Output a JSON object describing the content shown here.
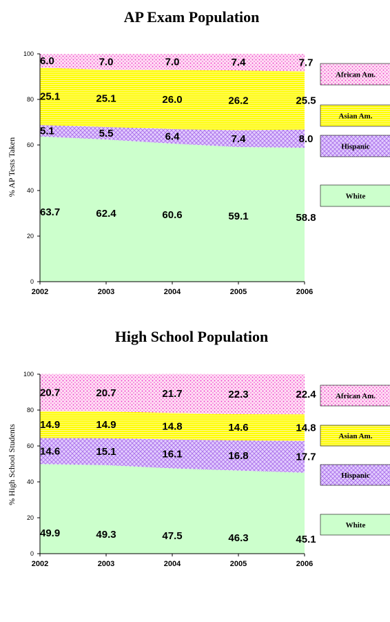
{
  "chart_data": [
    {
      "type": "area",
      "stacked": true,
      "title": "AP Exam Population",
      "ylabel": "% AP Tests Taken",
      "xlabel": "",
      "ylim": [
        0,
        100
      ],
      "yticks": [
        "0",
        "20",
        "40",
        "60",
        "80",
        "100"
      ],
      "categories": [
        "2002",
        "2003",
        "2004",
        "2005",
        "2006"
      ],
      "series": [
        {
          "name": "White",
          "values": [
            63.7,
            62.4,
            60.6,
            59.1,
            58.8
          ],
          "labels": [
            "63.7",
            "62.4",
            "60.6",
            "59.1",
            "58.8"
          ],
          "color": "#ccffcc",
          "pattern": "solid"
        },
        {
          "name": "Hispanic",
          "values": [
            5.1,
            5.5,
            6.4,
            7.4,
            8.0
          ],
          "labels": [
            "5.1",
            "5.5",
            "6.4",
            "7.4",
            "8.0"
          ],
          "color": "#cc99ff",
          "pattern": "crosshatch"
        },
        {
          "name": "Asian Am.",
          "values": [
            25.1,
            25.1,
            26.0,
            26.2,
            25.5
          ],
          "labels": [
            "25.1",
            "25.1",
            "26.0",
            "26.2",
            "25.5"
          ],
          "color": "#ffff00",
          "pattern": "hlines"
        },
        {
          "name": "African Am.",
          "values": [
            6.0,
            7.0,
            7.0,
            7.4,
            7.7
          ],
          "labels": [
            "6.0",
            "7.0",
            "7.0",
            "7.4",
            "7.7"
          ],
          "color": "#ff66cc",
          "pattern": "dots"
        }
      ],
      "legend_order": [
        "African Am.",
        "Asian Am.",
        "Hispanic",
        "White"
      ],
      "legend_position": "right",
      "grid": false
    },
    {
      "type": "area",
      "stacked": true,
      "title": "High School Population",
      "ylabel": "% High School Students",
      "xlabel": "",
      "ylim": [
        0,
        100
      ],
      "yticks": [
        "0",
        "20",
        "40",
        "60",
        "80",
        "100"
      ],
      "categories": [
        "2002",
        "2003",
        "2004",
        "2005",
        "2006"
      ],
      "series": [
        {
          "name": "White",
          "values": [
            49.9,
            49.3,
            47.5,
            46.3,
            45.1
          ],
          "labels": [
            "49.9",
            "49.3",
            "47.5",
            "46.3",
            "45.1"
          ],
          "color": "#ccffcc",
          "pattern": "solid"
        },
        {
          "name": "Hispanic",
          "values": [
            14.6,
            15.1,
            16.1,
            16.8,
            17.7
          ],
          "labels": [
            "14.6",
            "15.1",
            "16.1",
            "16.8",
            "17.7"
          ],
          "color": "#cc99ff",
          "pattern": "crosshatch"
        },
        {
          "name": "Asian Am.",
          "values": [
            14.9,
            14.9,
            14.8,
            14.6,
            14.8
          ],
          "labels": [
            "14.9",
            "14.9",
            "14.8",
            "14.6",
            "14.8"
          ],
          "color": "#ffff00",
          "pattern": "hlines"
        },
        {
          "name": "African Am.",
          "values": [
            20.7,
            20.7,
            21.7,
            22.3,
            22.4
          ],
          "labels": [
            "20.7",
            "20.7",
            "21.7",
            "22.3",
            "22.4"
          ],
          "color": "#ff66cc",
          "pattern": "dots"
        }
      ],
      "legend_order": [
        "African Am.",
        "Asian Am.",
        "Hispanic",
        "White"
      ],
      "legend_position": "right",
      "grid": false
    }
  ]
}
